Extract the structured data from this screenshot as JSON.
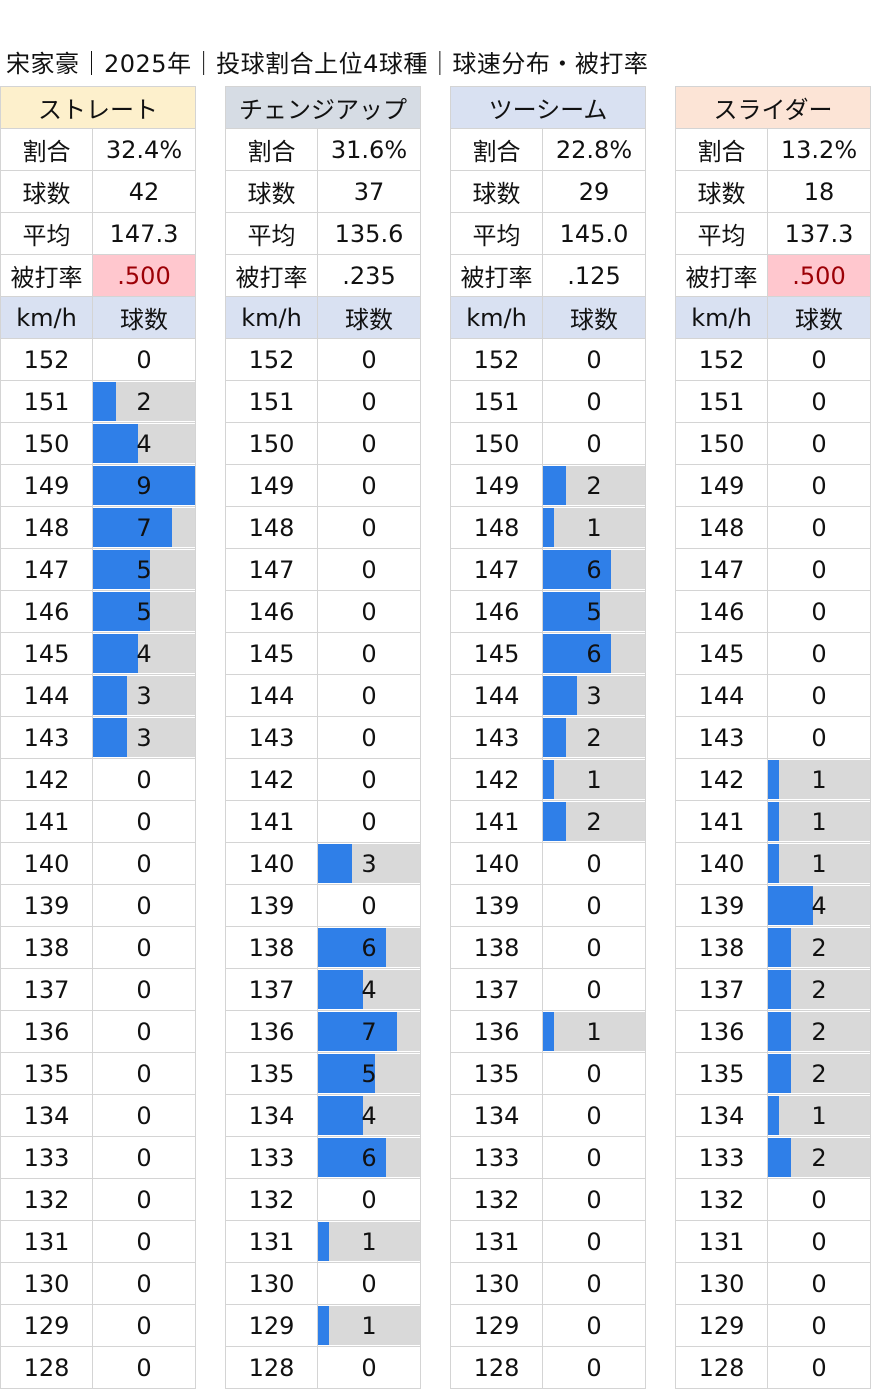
{
  "title": "宋家豪｜2025年｜投球割合上位4球種｜球速分布・被打率",
  "colors": {
    "bar": "#2f7fe8",
    "bar_bg": "#d9d9d9",
    "highlight_bg": "#ffc7ce",
    "highlight_text": "#9c0006"
  },
  "stat_labels": {
    "ratio": "割合",
    "count": "球数",
    "avg": "平均",
    "baa": "被打率"
  },
  "col_headers": {
    "speed": "km/h",
    "count": "球数"
  },
  "speeds": [
    "152",
    "151",
    "150",
    "149",
    "148",
    "147",
    "146",
    "145",
    "144",
    "143",
    "142",
    "141",
    "140",
    "139",
    "138",
    "137",
    "136",
    "135",
    "134",
    "133",
    "132",
    "131",
    "130",
    "129",
    "128"
  ],
  "pitches": [
    {
      "name": "ストレート",
      "ratio": "32.4%",
      "count": "42",
      "avg": "147.3",
      "baa": ".500",
      "baa_highlight": true,
      "counts": [
        "0",
        "2",
        "4",
        "9",
        "7",
        "5",
        "5",
        "4",
        "3",
        "3",
        "0",
        "0",
        "0",
        "0",
        "0",
        "0",
        "0",
        "0",
        "0",
        "0",
        "0",
        "0",
        "0",
        "0",
        "0"
      ]
    },
    {
      "name": "チェンジアップ",
      "ratio": "31.6%",
      "count": "37",
      "avg": "135.6",
      "baa": ".235",
      "baa_highlight": false,
      "counts": [
        "0",
        "0",
        "0",
        "0",
        "0",
        "0",
        "0",
        "0",
        "0",
        "0",
        "0",
        "0",
        "3",
        "0",
        "6",
        "4",
        "7",
        "5",
        "4",
        "6",
        "0",
        "1",
        "0",
        "1",
        "0"
      ]
    },
    {
      "name": "ツーシーム",
      "ratio": "22.8%",
      "count": "29",
      "avg": "145.0",
      "baa": ".125",
      "baa_highlight": false,
      "counts": [
        "0",
        "0",
        "0",
        "2",
        "1",
        "6",
        "5",
        "6",
        "3",
        "2",
        "1",
        "2",
        "0",
        "0",
        "0",
        "0",
        "1",
        "0",
        "0",
        "0",
        "0",
        "0",
        "0",
        "0",
        "0"
      ]
    },
    {
      "name": "スライダー",
      "ratio": "13.2%",
      "count": "18",
      "avg": "137.3",
      "baa": ".500",
      "baa_highlight": true,
      "counts": [
        "0",
        "0",
        "0",
        "0",
        "0",
        "0",
        "0",
        "0",
        "0",
        "0",
        "1",
        "1",
        "1",
        "4",
        "2",
        "2",
        "2",
        "2",
        "1",
        "2",
        "0",
        "0",
        "0",
        "0",
        "0"
      ]
    }
  ]
}
